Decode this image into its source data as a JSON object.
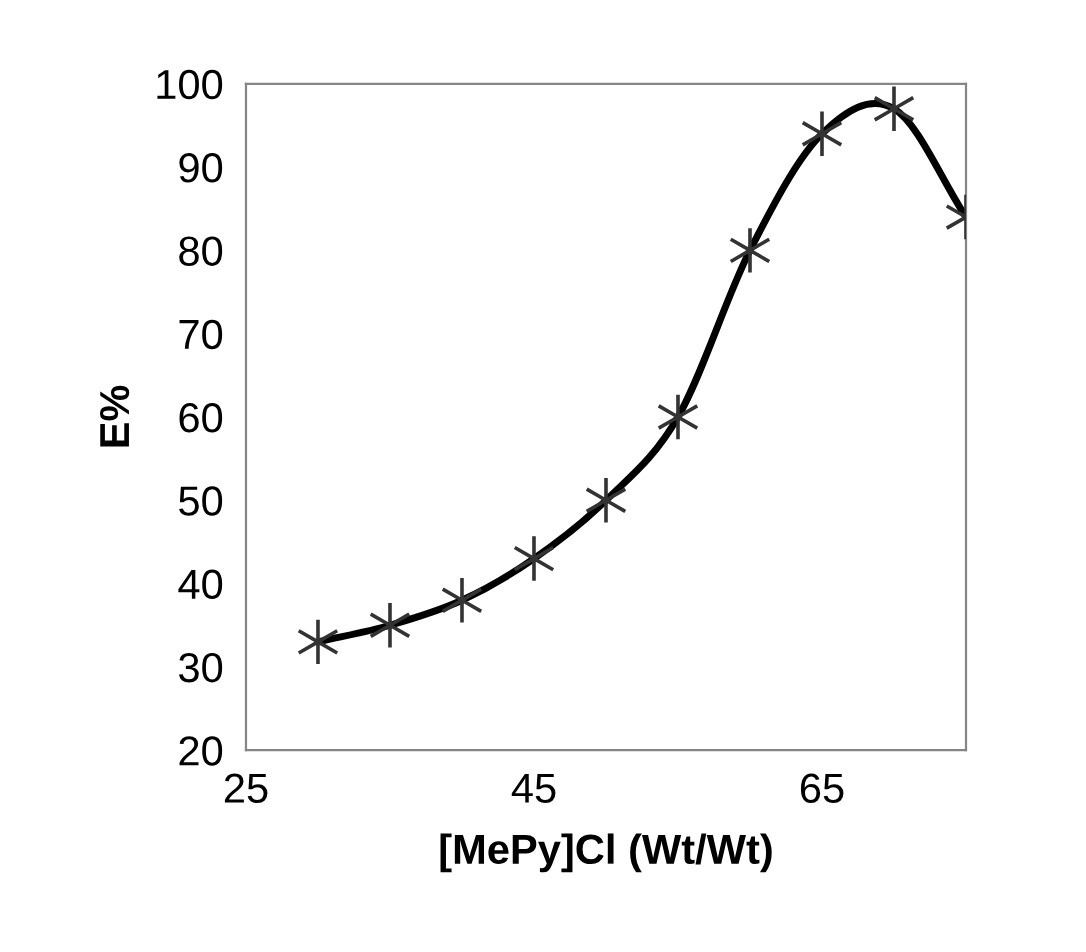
{
  "chart_data": {
    "type": "line",
    "xlabel": "[MePy]Cl (Wt/Wt)",
    "ylabel": "E%",
    "x": [
      30,
      35,
      40,
      45,
      50,
      55,
      60,
      65,
      70,
      75
    ],
    "series": [
      {
        "color": "#000000",
        "values": [
          33,
          35,
          38,
          43,
          50,
          60,
          80,
          94,
          97,
          84
        ]
      }
    ],
    "xlim": [
      25,
      75
    ],
    "xticks": [
      25,
      45,
      65
    ],
    "ylim": [
      20,
      100
    ],
    "yticks": [
      20,
      30,
      40,
      50,
      60,
      70,
      80,
      90,
      100
    ],
    "grid": false,
    "legend": false,
    "marker": "cross",
    "line_style": "solid"
  }
}
